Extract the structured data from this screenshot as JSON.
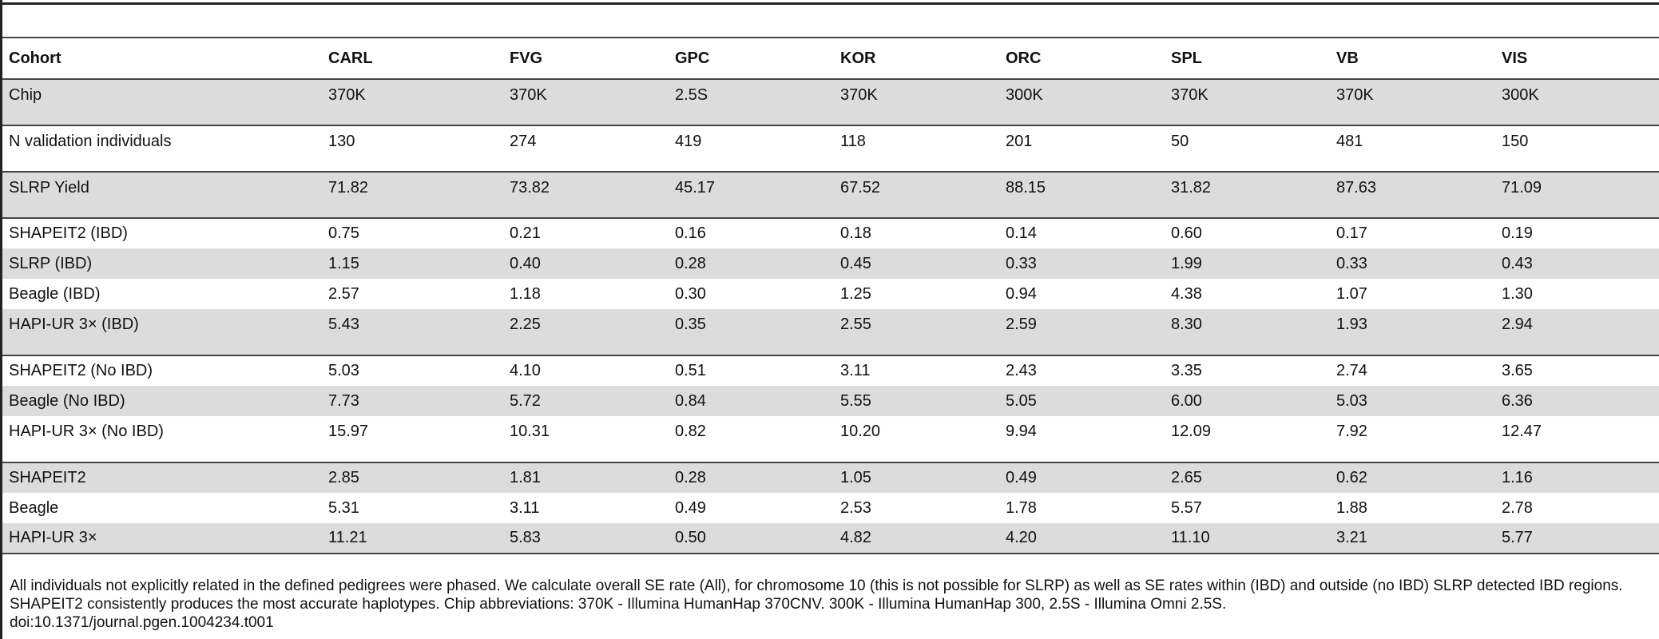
{
  "table": {
    "headers": [
      "Cohort",
      "CARL",
      "FVG",
      "GPC",
      "KOR",
      "ORC",
      "SPL",
      "VB",
      "VIS"
    ],
    "rows": [
      [
        "Chip",
        "370K",
        "370K",
        "2.5S",
        "370K",
        "300K",
        "370K",
        "370K",
        "300K"
      ],
      [
        "N validation individuals",
        "130",
        "274",
        "419",
        "118",
        "201",
        "50",
        "481",
        "150"
      ],
      [
        "SLRP Yield",
        "71.82",
        "73.82",
        "45.17",
        "67.52",
        "88.15",
        "31.82",
        "87.63",
        "71.09"
      ],
      [
        "SHAPEIT2 (IBD)",
        "0.75",
        "0.21",
        "0.16",
        "0.18",
        "0.14",
        "0.60",
        "0.17",
        "0.19"
      ],
      [
        "SLRP (IBD)",
        "1.15",
        "0.40",
        "0.28",
        "0.45",
        "0.33",
        "1.99",
        "0.33",
        "0.43"
      ],
      [
        "Beagle (IBD)",
        "2.57",
        "1.18",
        "0.30",
        "1.25",
        "0.94",
        "4.38",
        "1.07",
        "1.30"
      ],
      [
        "HAPI-UR 3× (IBD)",
        "5.43",
        "2.25",
        "0.35",
        "2.55",
        "2.59",
        "8.30",
        "1.93",
        "2.94"
      ],
      [
        "SHAPEIT2 (No IBD)",
        "5.03",
        "4.10",
        "0.51",
        "3.11",
        "2.43",
        "3.35",
        "2.74",
        "3.65"
      ],
      [
        "Beagle (No IBD)",
        "7.73",
        "5.72",
        "0.84",
        "5.55",
        "5.05",
        "6.00",
        "5.03",
        "6.36"
      ],
      [
        "HAPI-UR 3× (No IBD)",
        "15.97",
        "10.31",
        "0.82",
        "10.20",
        "9.94",
        "12.09",
        "7.92",
        "12.47"
      ],
      [
        "SHAPEIT2",
        "2.85",
        "1.81",
        "0.28",
        "1.05",
        "0.49",
        "2.65",
        "0.62",
        "1.16"
      ],
      [
        "Beagle",
        "5.31",
        "3.11",
        "0.49",
        "2.53",
        "1.78",
        "5.57",
        "1.88",
        "2.78"
      ],
      [
        "HAPI-UR 3×",
        "11.21",
        "5.83",
        "0.50",
        "4.82",
        "4.20",
        "11.10",
        "3.21",
        "5.77"
      ]
    ]
  },
  "footnote": {
    "text": "All individuals not explicitly related in the defined pedigrees were phased. We calculate overall SE rate (All), for chromosome 10 (this is not possible for SLRP) as well as SE rates within (IBD) and outside (no IBD) SLRP detected IBD regions. SHAPEIT2 consistently produces the most accurate haplotypes. Chip abbreviations: 370K - Illumina HumanHap 370CNV. 300K - Illumina HumanHap 300, 2.5S - Illumina Omni 2.5S.",
    "doi": "doi:10.1371/journal.pgen.1004234.t001"
  }
}
